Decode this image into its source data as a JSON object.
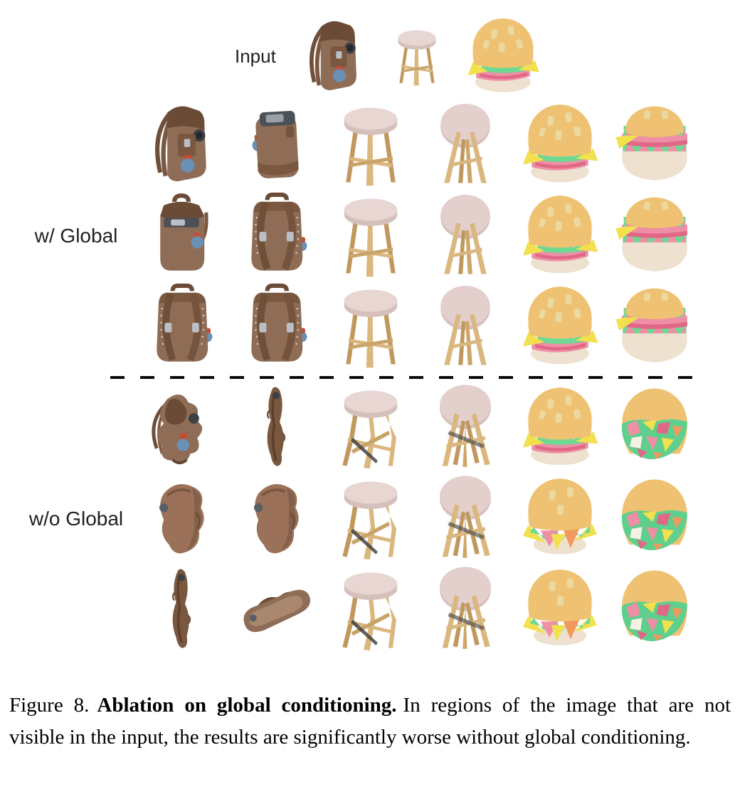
{
  "figure": {
    "input_label": "Input",
    "input_items": [
      {
        "object": "backpack",
        "symbol": "sym-backpack-front",
        "desc": "brown leather backpack, three-quarter input view"
      },
      {
        "object": "stool",
        "symbol": "sym-stool-front",
        "desc": "wooden stool with pale pink seat, input view"
      },
      {
        "object": "burger",
        "symbol": "sym-burger-front",
        "desc": "cartoon hamburger with yellow bun, input view"
      }
    ],
    "sections": [
      {
        "id": "with-global",
        "label": "w/ Global",
        "rows": [
          [
            {
              "object": "backpack",
              "symbol": "sym-backpack-front",
              "desc": "backpack three-quarter view, clean result"
            },
            {
              "object": "backpack",
              "symbol": "sym-backpack-side",
              "desc": "backpack side view with dark top panel, clean result"
            },
            {
              "object": "stool",
              "symbol": "sym-stool-front",
              "desc": "stool upright view, clean result"
            },
            {
              "object": "stool",
              "symbol": "sym-stool-below",
              "desc": "stool seen from below, clean result"
            },
            {
              "object": "burger",
              "symbol": "sym-burger-front",
              "desc": "burger front view, clean result"
            },
            {
              "object": "burger",
              "symbol": "sym-burger-back",
              "desc": "burger back view with neat layers, clean result"
            }
          ],
          [
            {
              "object": "backpack",
              "symbol": "sym-backpack-handle",
              "desc": "backpack front view with handle, clean result"
            },
            {
              "object": "backpack",
              "symbol": "sym-backpack-back",
              "desc": "backpack back view with straps, clean result"
            },
            {
              "object": "stool",
              "symbol": "sym-stool-front",
              "desc": "stool upright view, clean result"
            },
            {
              "object": "stool",
              "symbol": "sym-stool-below",
              "desc": "stool seen from below, clean result"
            },
            {
              "object": "burger",
              "symbol": "sym-burger-front",
              "desc": "burger front view, clean result"
            },
            {
              "object": "burger",
              "symbol": "sym-burger-back",
              "desc": "burger back view with neat layers, clean result"
            }
          ],
          [
            {
              "object": "backpack",
              "symbol": "sym-backpack-back",
              "desc": "backpack back view with straps and studs, clean result"
            },
            {
              "object": "backpack",
              "symbol": "sym-backpack-back",
              "desc": "backpack back three-quarter view, clean result"
            },
            {
              "object": "stool",
              "symbol": "sym-stool-front",
              "desc": "stool upright view, clean result"
            },
            {
              "object": "stool",
              "symbol": "sym-stool-below",
              "desc": "stool seen from below, clean result"
            },
            {
              "object": "burger",
              "symbol": "sym-burger-front",
              "desc": "burger front view, clean result"
            },
            {
              "object": "burger",
              "symbol": "sym-burger-back",
              "desc": "burger back view with neat layers, clean result"
            }
          ]
        ]
      },
      {
        "id": "without-global",
        "label": "w/o Global",
        "rows": [
          [
            {
              "object": "backpack",
              "symbol": "sym-backpack-warped",
              "desc": "backpack distorted and melted, degraded result"
            },
            {
              "object": "backpack",
              "symbol": "sym-backpack-sliver",
              "desc": "backpack flattened to a thin sliver, degraded result"
            },
            {
              "object": "stool",
              "symbol": "sym-stool-warped",
              "desc": "stool with warped crossing legs, degraded result"
            },
            {
              "object": "stool",
              "symbol": "sym-stool-below-warped",
              "desc": "stool from below with tangled extra legs, degraded result"
            },
            {
              "object": "burger",
              "symbol": "sym-burger-front",
              "desc": "burger front view with slight artifacts"
            },
            {
              "object": "burger",
              "symbol": "sym-burger-back-messy",
              "desc": "burger back covered in chaotic colorful texture, degraded result"
            }
          ],
          [
            {
              "object": "backpack",
              "symbol": "sym-backpack-blob",
              "desc": "backpack melted into a smooth torso-like blob, degraded result"
            },
            {
              "object": "backpack",
              "symbol": "sym-backpack-blob",
              "desc": "backpack blob back view, degraded result"
            },
            {
              "object": "stool",
              "symbol": "sym-stool-warped",
              "desc": "stool with warped brace sticks, degraded result"
            },
            {
              "object": "stool",
              "symbol": "sym-stool-below-warped",
              "desc": "stool from below with crossed legs, degraded result"
            },
            {
              "object": "burger",
              "symbol": "sym-burger-front-messy",
              "desc": "burger front with messy dripping layers, degraded result"
            },
            {
              "object": "burger",
              "symbol": "sym-burger-back-messy",
              "desc": "burger back covered in chaotic colorful texture, degraded result"
            }
          ],
          [
            {
              "object": "backpack",
              "symbol": "sym-backpack-sliver",
              "desc": "backpack collapsed into a thin vertical strip, degraded result"
            },
            {
              "object": "backpack",
              "symbol": "sym-backpack-sandal",
              "desc": "backpack flattened like a sandal sole, degraded result"
            },
            {
              "object": "stool",
              "symbol": "sym-stool-warped",
              "desc": "stool with broken crossing legs, degraded result"
            },
            {
              "object": "stool",
              "symbol": "sym-stool-below-warped",
              "desc": "stool from below with tangled legs, degraded result"
            },
            {
              "object": "burger",
              "symbol": "sym-burger-front-messy",
              "desc": "burger front with messy layers, degraded result"
            },
            {
              "object": "burger",
              "symbol": "sym-burger-back-messy",
              "desc": "burger back covered in chaotic colorful texture, degraded result"
            }
          ]
        ]
      }
    ]
  },
  "caption": {
    "prefix": "Figure 8.",
    "bold": "Ablation on global conditioning.",
    "text": "In regions of the image that are not visible in the input, the results are significantly worse without global conditioning."
  },
  "colors": {
    "background": "#ffffff",
    "label_text": "#1f1f1f",
    "caption_text": "#000000",
    "separator": "#0a0a0a",
    "backpack_brown": "#8e6c56",
    "backpack_dark_brown": "#6b4b35",
    "stool_seat_pink": "#e8d6d3",
    "stool_wood": "#dab77e",
    "burger_bun": "#eec272",
    "burger_lettuce": "#6ed993",
    "burger_tomato": "#ee8fa6",
    "burger_cheese": "#f2e04e",
    "burger_bottom_bun": "#eee1d0",
    "bottle_blue": "#6a90b5",
    "bottle_cap_red": "#c64a35"
  }
}
